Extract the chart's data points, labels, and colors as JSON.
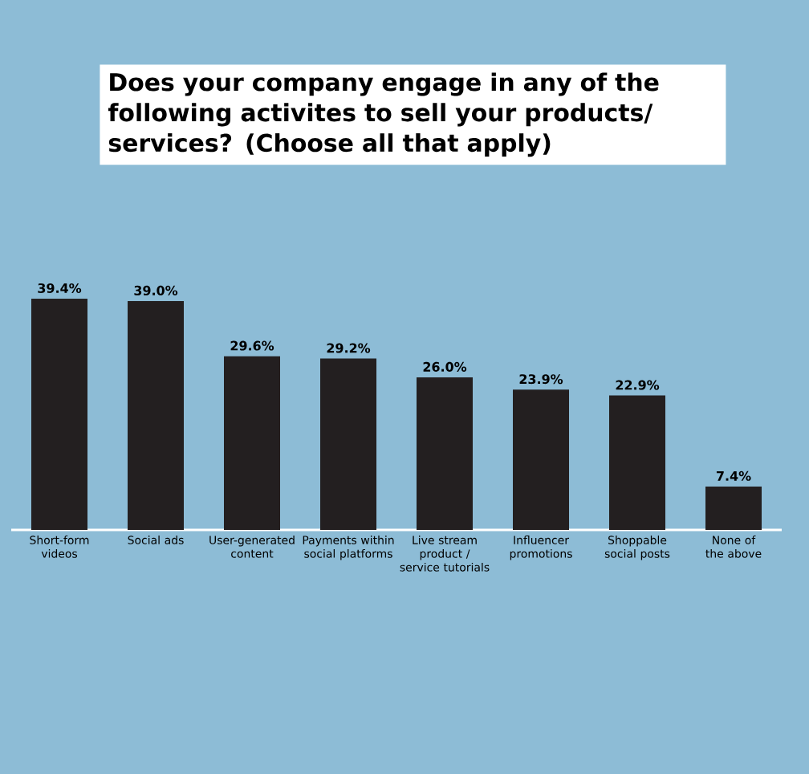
{
  "chart_data": {
    "type": "bar",
    "title": "Does your company engage in any of the following activites to sell your products/ services? (Choose all that apply)",
    "categories": [
      "Short-form videos",
      "Social ads",
      "User-generated content",
      "Payments within social platforms",
      "Live stream product / service tutorials",
      "Influencer promotions",
      "Shoppable social posts",
      "None of the above"
    ],
    "values": [
      39.4,
      39.0,
      29.6,
      29.2,
      26.0,
      23.9,
      22.9,
      7.4
    ],
    "value_labels": [
      "39.4%",
      "39.0%",
      "29.6%",
      "29.2%",
      "26.0%",
      "23.9%",
      "22.9%",
      "7.4%"
    ],
    "color": "#231f20"
  }
}
